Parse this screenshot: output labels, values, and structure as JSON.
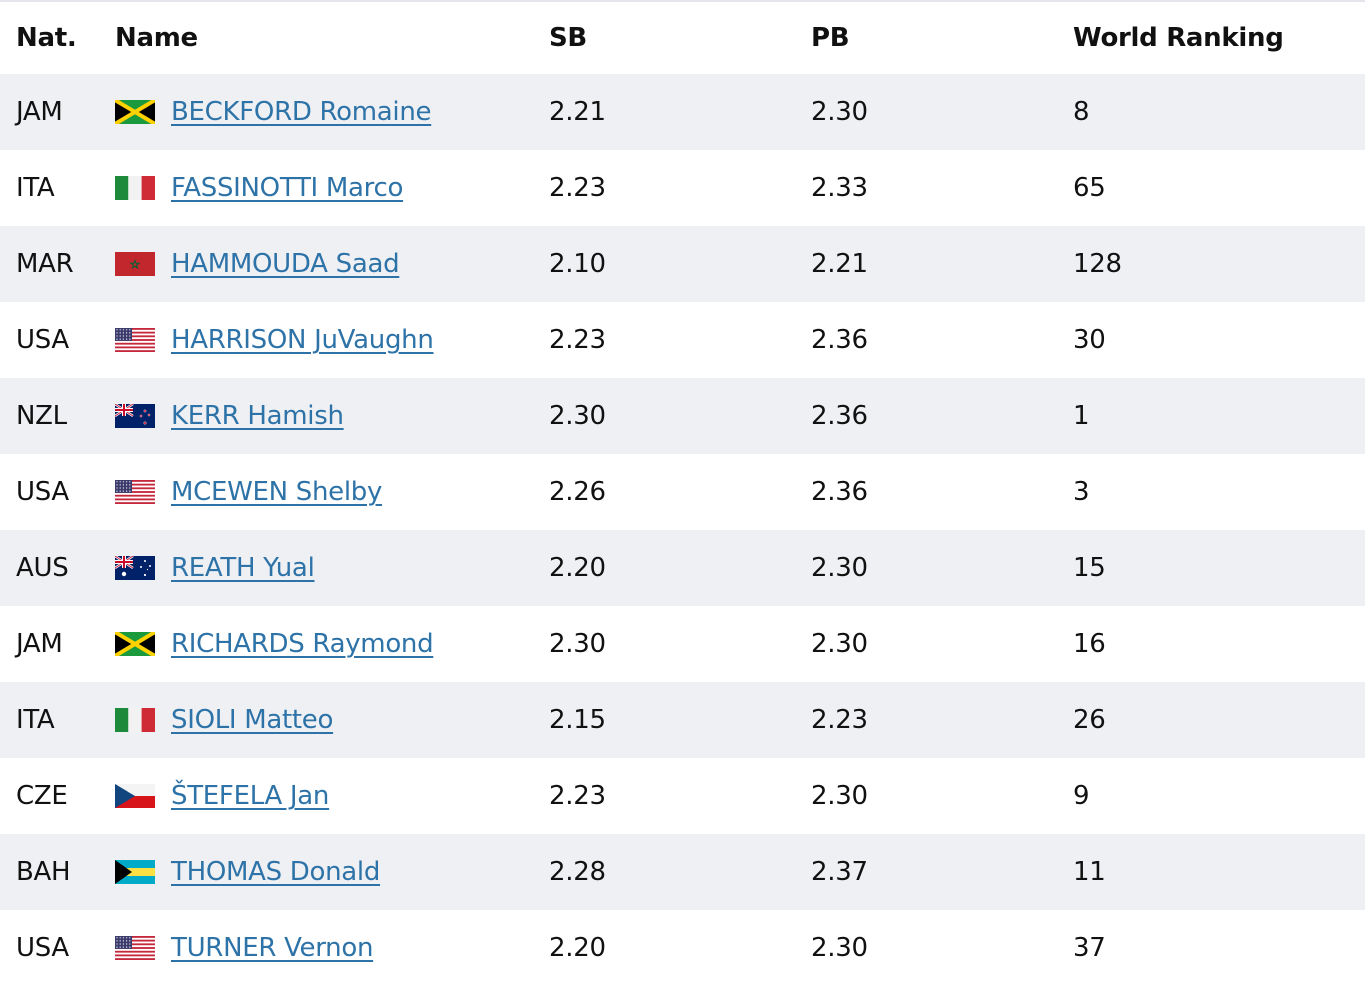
{
  "colors": {
    "link": "#2e73a8",
    "row_shade": "#eef0f4",
    "text": "#111111"
  },
  "header": {
    "nat": "Nat.",
    "name": "Name",
    "sb": "SB",
    "pb": "PB",
    "rank": "World Ranking"
  },
  "rows": [
    {
      "nat": "JAM",
      "flag": "jamaica-flag-icon",
      "name": "BECKFORD Romaine",
      "sb": "2.21",
      "pb": "2.30",
      "rank": "8"
    },
    {
      "nat": "ITA",
      "flag": "italy-flag-icon",
      "name": "FASSINOTTI Marco",
      "sb": "2.23",
      "pb": "2.33",
      "rank": "65"
    },
    {
      "nat": "MAR",
      "flag": "morocco-flag-icon",
      "name": "HAMMOUDA Saad",
      "sb": "2.10",
      "pb": "2.21",
      "rank": "128"
    },
    {
      "nat": "USA",
      "flag": "usa-flag-icon",
      "name": "HARRISON JuVaughn",
      "sb": "2.23",
      "pb": "2.36",
      "rank": "30"
    },
    {
      "nat": "NZL",
      "flag": "new-zealand-flag-icon",
      "name": "KERR Hamish",
      "sb": "2.30",
      "pb": "2.36",
      "rank": "1"
    },
    {
      "nat": "USA",
      "flag": "usa-flag-icon",
      "name": "MCEWEN Shelby",
      "sb": "2.26",
      "pb": "2.36",
      "rank": "3"
    },
    {
      "nat": "AUS",
      "flag": "australia-flag-icon",
      "name": "REATH Yual",
      "sb": "2.20",
      "pb": "2.30",
      "rank": "15"
    },
    {
      "nat": "JAM",
      "flag": "jamaica-flag-icon",
      "name": "RICHARDS Raymond",
      "sb": "2.30",
      "pb": "2.30",
      "rank": "16"
    },
    {
      "nat": "ITA",
      "flag": "italy-flag-icon",
      "name": "SIOLI Matteo",
      "sb": "2.15",
      "pb": "2.23",
      "rank": "26"
    },
    {
      "nat": "CZE",
      "flag": "czech-flag-icon",
      "name": "ŠTEFELA Jan",
      "sb": "2.23",
      "pb": "2.30",
      "rank": "9"
    },
    {
      "nat": "BAH",
      "flag": "bahamas-flag-icon",
      "name": "THOMAS Donald",
      "sb": "2.28",
      "pb": "2.37",
      "rank": "11"
    },
    {
      "nat": "USA",
      "flag": "usa-flag-icon",
      "name": "TURNER Vernon",
      "sb": "2.20",
      "pb": "2.30",
      "rank": "37"
    }
  ]
}
